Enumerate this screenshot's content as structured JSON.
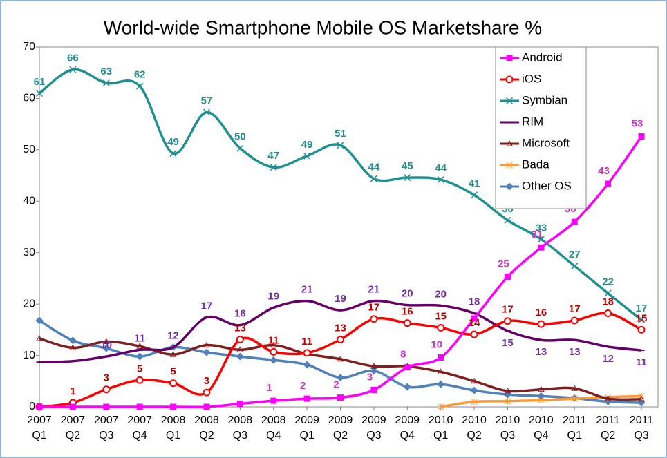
{
  "chart_data": {
    "type": "line",
    "title": "World-wide Smartphone Mobile OS Marketshare  %",
    "categories": [
      "2007 Q1",
      "2007 Q2",
      "2007 Q3",
      "2007 Q4",
      "2008 Q1",
      "2008 Q2",
      "2008 Q3",
      "2008 Q4",
      "2009 Q1",
      "2009 Q2",
      "2009 Q3",
      "2009 Q4",
      "2010 Q1",
      "2010 Q2",
      "2010 Q3",
      "2010 Q4",
      "2011 Q1",
      "2011 Q2",
      "2011 Q3"
    ],
    "ylim": [
      0,
      70
    ],
    "yticks": [
      0,
      10,
      20,
      30,
      40,
      50,
      60,
      70
    ],
    "smooth": true,
    "legend": "top-right",
    "series": [
      {
        "name": "Android",
        "color": "#ff00ff",
        "label_color": "#cc33cc",
        "marker": "square",
        "values": [
          0,
          0,
          0,
          0,
          0,
          0,
          0.6,
          1.2,
          1.6,
          1.8,
          3.3,
          7.7,
          9.6,
          17.2,
          25.3,
          31,
          36,
          43.4,
          52.6
        ],
        "value_labels": [
          null,
          null,
          null,
          null,
          null,
          null,
          null,
          "1",
          "2",
          "2",
          "3",
          "8",
          "10",
          null,
          "25",
          "31",
          "36",
          "43",
          "53"
        ]
      },
      {
        "name": "iOS",
        "color": "#ff0000",
        "label_color": "#c00000",
        "marker": "circle",
        "values": [
          0,
          0.8,
          3.4,
          5.2,
          4.6,
          2.8,
          13.1,
          10.7,
          10.5,
          13.1,
          17.1,
          16.3,
          15.4,
          14.1,
          16.7,
          16.1,
          16.8,
          18.2,
          15
        ],
        "value_labels": [
          null,
          "1",
          "3",
          "5",
          "5",
          "3",
          "13",
          "11",
          "11",
          "13",
          "17",
          "16",
          "15",
          "14",
          "17",
          "16",
          "17",
          "18",
          "15"
        ]
      },
      {
        "name": "Symbian",
        "color": "#1f9090",
        "label_color": "#1f8f8f",
        "marker": "x",
        "values": [
          61,
          65.6,
          63,
          62.4,
          49.3,
          57.3,
          50.3,
          46.6,
          48.8,
          50.9,
          44.4,
          44.6,
          44.2,
          41.2,
          36.3,
          32.6,
          27.4,
          22.1,
          16.9
        ],
        "value_labels": [
          "61",
          "66",
          "63",
          "62",
          "49",
          "57",
          "50",
          "47",
          "49",
          "51",
          "44",
          "45",
          "44",
          "41",
          "36",
          "33",
          "27",
          "22",
          "17"
        ]
      },
      {
        "name": "RIM",
        "color": "#660066",
        "label_color": "#7030a0",
        "marker": "dash",
        "values": [
          8.7,
          8.9,
          9.8,
          11.1,
          11.6,
          17.4,
          15.9,
          19.3,
          20.6,
          18.8,
          20.6,
          19.8,
          19.7,
          18.2,
          14.8,
          13,
          13,
          11.7,
          11
        ],
        "value_labels": [
          null,
          null,
          "10",
          "11",
          "12",
          "17",
          "16",
          "19",
          "21",
          "19",
          "21",
          "20",
          "20",
          "18",
          "15",
          "13",
          "13",
          "12",
          "11"
        ]
      },
      {
        "name": "Microsoft",
        "color": "#7f1f1f",
        "marker": "triangle",
        "values": [
          13.3,
          11.5,
          12.7,
          11.8,
          10.2,
          12,
          11.1,
          12,
          10.3,
          9.3,
          7.9,
          7.9,
          6.8,
          5,
          3.1,
          3.4,
          3.6,
          1.6,
          1.5
        ]
      },
      {
        "name": "Bada",
        "color": "#ff9933",
        "marker": "star",
        "values": [
          null,
          null,
          null,
          null,
          null,
          null,
          null,
          null,
          null,
          null,
          null,
          null,
          0,
          1,
          1.1,
          1.3,
          1.6,
          1.9,
          2.1
        ]
      },
      {
        "name": "Other OS",
        "color": "#4f81bd",
        "marker": "diamond",
        "values": [
          16.8,
          12.9,
          11.4,
          9.8,
          11.6,
          10.6,
          9.8,
          9.1,
          8.2,
          5.7,
          7,
          3.9,
          4.4,
          3.2,
          2.4,
          2.1,
          1.7,
          1,
          0.8
        ]
      }
    ]
  }
}
